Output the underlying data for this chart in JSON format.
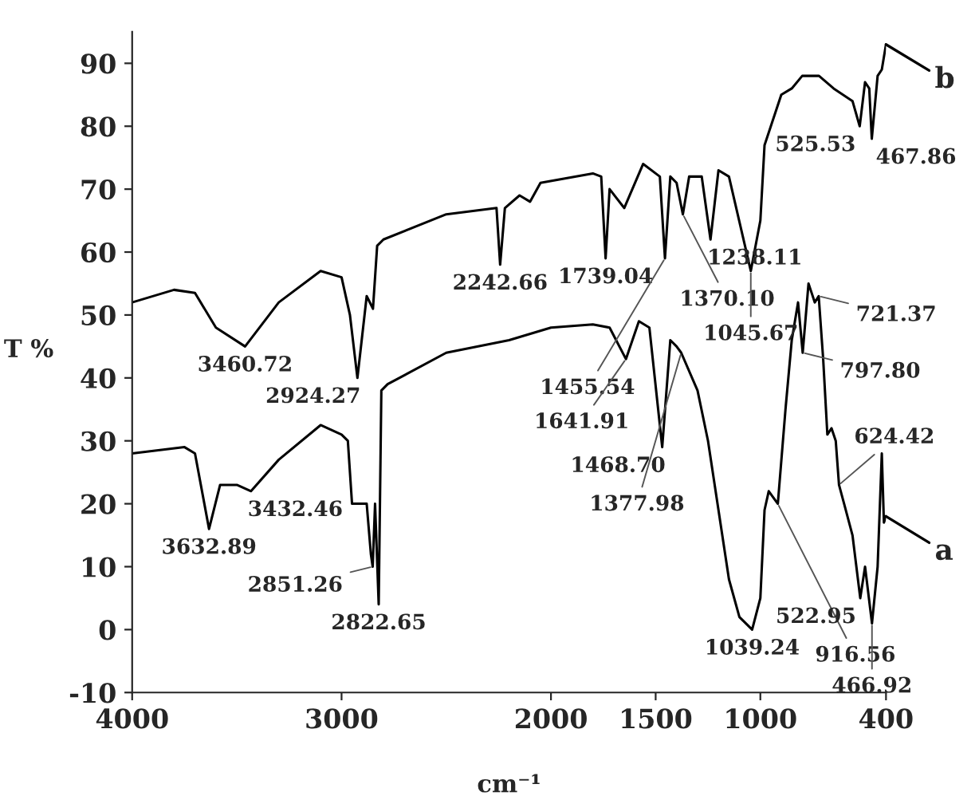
{
  "chart_data": {
    "type": "line",
    "xlabel": "cm⁻¹",
    "ylabel": "T %",
    "xlim": [
      4000,
      400
    ],
    "xticks": [
      4000,
      3000,
      2000,
      1500,
      1000,
      400
    ],
    "ylim": [
      -10,
      95
    ],
    "yticks": [
      -10,
      0,
      10,
      20,
      30,
      40,
      50,
      60,
      70,
      80,
      90
    ],
    "grid": false,
    "legend": "right",
    "marker": "none",
    "line_style": "solid",
    "series": [
      {
        "name": "b",
        "color": "#000000",
        "x": [
          4000,
          3800,
          3700,
          3600,
          3460.72,
          3300,
          3100,
          3000,
          2960,
          2924.27,
          2880,
          2850,
          2830,
          2800,
          2500,
          2260,
          2242.66,
          2220,
          2150,
          2100,
          2050,
          1800,
          1760,
          1739.04,
          1720,
          1650,
          1560,
          1480,
          1455.54,
          1430,
          1400,
          1370.1,
          1340,
          1280,
          1238.11,
          1200,
          1150,
          1045.67,
          1000,
          980,
          900,
          850,
          800,
          720,
          650,
          560,
          525.53,
          500,
          480,
          467.86,
          440,
          420,
          400
        ],
        "values": [
          52,
          54,
          53.5,
          48,
          45,
          52,
          57,
          56,
          50,
          40,
          53,
          51,
          61,
          62,
          66,
          67,
          58,
          67,
          69,
          68,
          71,
          72.5,
          72,
          59,
          70,
          67,
          74,
          72,
          59,
          72,
          71,
          66,
          72,
          72,
          62,
          73,
          72,
          57,
          65,
          77,
          85,
          86,
          88,
          88,
          86,
          84,
          80,
          87,
          86,
          78,
          88,
          89,
          93
        ]
      },
      {
        "name": "a",
        "color": "#000000",
        "x": [
          4000,
          3750,
          3700,
          3632.89,
          3580,
          3500,
          3432.46,
          3300,
          3100,
          3000,
          2970,
          2950,
          2880,
          2860,
          2851.26,
          2840,
          2822.65,
          2810,
          2780,
          2500,
          2200,
          2000,
          1800,
          1720,
          1641.91,
          1580,
          1530,
          1468.7,
          1430,
          1400,
          1377.98,
          1300,
          1250,
          1150,
          1100,
          1039.24,
          1000,
          980,
          960,
          916.56,
          880,
          850,
          820,
          797.8,
          770,
          740,
          721.37,
          700,
          680,
          660,
          640,
          624.42,
          600,
          560,
          522.95,
          500,
          466.92,
          440,
          420,
          410,
          400
        ],
        "values": [
          28,
          29,
          28,
          16,
          23,
          23,
          22,
          27,
          32.5,
          31,
          30,
          20,
          20,
          12,
          10,
          20,
          4,
          38,
          39,
          44,
          46,
          48,
          48.5,
          48,
          43,
          49,
          48,
          29,
          46,
          45,
          44,
          38,
          30,
          8,
          2,
          0,
          5,
          19,
          22,
          20,
          35,
          46,
          52,
          44,
          55,
          52,
          53,
          43,
          31,
          32,
          30,
          23,
          20,
          15,
          5,
          10,
          1,
          10,
          28,
          17,
          18
        ]
      }
    ],
    "annotations": [
      {
        "text": "3460.72",
        "x": 3460.72,
        "y": 45
      },
      {
        "text": "2924.27",
        "x": 2924.27,
        "y": 40
      },
      {
        "text": "2242.66",
        "x": 2242.66,
        "y": 58
      },
      {
        "text": "1739.04",
        "x": 1739.04,
        "y": 59
      },
      {
        "text": "1370.10",
        "x": 1370.1,
        "y": 66
      },
      {
        "text": "1455.54",
        "x": 1455.54,
        "y": 59
      },
      {
        "text": "1238.11",
        "x": 1238.11,
        "y": 62
      },
      {
        "text": "1045.67",
        "x": 1045.67,
        "y": 57
      },
      {
        "text": "525.53",
        "x": 525.53,
        "y": 80
      },
      {
        "text": "467.86",
        "x": 467.86,
        "y": 78
      },
      {
        "text": "3632.89",
        "x": 3632.89,
        "y": 16
      },
      {
        "text": "3432.46",
        "x": 3432.46,
        "y": 22
      },
      {
        "text": "2851.26",
        "x": 2851.26,
        "y": 10
      },
      {
        "text": "2822.65",
        "x": 2822.65,
        "y": 4
      },
      {
        "text": "1641.91",
        "x": 1641.91,
        "y": 43
      },
      {
        "text": "1468.70",
        "x": 1468.7,
        "y": 29
      },
      {
        "text": "1377.98",
        "x": 1377.98,
        "y": 44
      },
      {
        "text": "1039.24",
        "x": 1039.24,
        "y": 0
      },
      {
        "text": "916.56",
        "x": 916.56,
        "y": 20
      },
      {
        "text": "797.80",
        "x": 797.8,
        "y": 44
      },
      {
        "text": "721.37",
        "x": 721.37,
        "y": 53
      },
      {
        "text": "624.42",
        "x": 624.42,
        "y": 23
      },
      {
        "text": "522.95",
        "x": 522.95,
        "y": 5
      },
      {
        "text": "466.92",
        "x": 466.92,
        "y": 1
      }
    ]
  }
}
